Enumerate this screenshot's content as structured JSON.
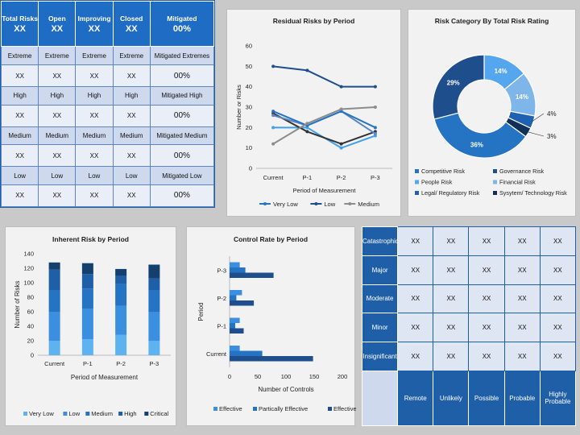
{
  "kpi": {
    "headers": [
      {
        "label": "Total Risks",
        "value": "XX"
      },
      {
        "label": "Open",
        "value": "XX"
      },
      {
        "label": "Improving",
        "value": "XX"
      },
      {
        "label": "Closed",
        "value": "XX"
      },
      {
        "label": "Mitigated",
        "value": "00%"
      }
    ],
    "rows": [
      {
        "level": [
          "Extreme",
          "Extreme",
          "Extreme",
          "Extreme",
          "Mitigated Extremes"
        ],
        "values": [
          "XX",
          "XX",
          "XX",
          "XX",
          "00%"
        ]
      },
      {
        "level": [
          "High",
          "High",
          "High",
          "High",
          "Mitigated High"
        ],
        "values": [
          "XX",
          "XX",
          "XX",
          "XX",
          "00%"
        ]
      },
      {
        "level": [
          "Medium",
          "Medium",
          "Medium",
          "Medium",
          "Mitigated Medium"
        ],
        "values": [
          "XX",
          "XX",
          "XX",
          "XX",
          "00%"
        ]
      },
      {
        "level": [
          "Low",
          "Low",
          "Low",
          "Low",
          "Mitigated Low"
        ],
        "values": [
          "XX",
          "XX",
          "XX",
          "XX",
          "00%"
        ]
      }
    ]
  },
  "matrix": {
    "rows": [
      "Catastrophic",
      "Major",
      "Moderate",
      "Minor",
      "Insignificant"
    ],
    "cols": [
      "Remote",
      "Unlikely",
      "Possible",
      "Probable",
      "Highly Probable"
    ],
    "cell": "XX"
  },
  "colors": {
    "dark": "#1f4e8c",
    "mid": "#2574c4",
    "light": "#54a6ee",
    "pale": "#9fcbf2",
    "navy": "#10305a",
    "gray": "#8c8c8c"
  },
  "chart_data": [
    {
      "type": "line",
      "title": "Residual Risks by Period",
      "xlabel": "Period of Measurement",
      "ylabel": "Number or Risks",
      "categories": [
        "Current",
        "P-1",
        "P-2",
        "P-3"
      ],
      "ylim": [
        0,
        60
      ],
      "yticks": [
        0,
        10,
        20,
        30,
        40,
        50,
        60
      ],
      "legend": "bottom",
      "series": [
        {
          "name": "Very Low",
          "values": [
            28,
            21,
            28,
            20
          ],
          "color": "#2574c4"
        },
        {
          "name": "Low",
          "values": [
            50,
            48,
            40,
            40
          ],
          "color": "#1f4e8c"
        },
        {
          "name": "Medium",
          "values": [
            12,
            22,
            29,
            30
          ],
          "color": "#8c8c8c"
        }
      ],
      "extra_series": [
        {
          "values": [
            20,
            20,
            10,
            16
          ],
          "color": "#3fa0ea"
        },
        {
          "values": [
            27,
            18,
            12,
            18
          ],
          "color": "#333333"
        },
        {
          "values": [
            26,
            21,
            28,
            17
          ],
          "color": "#5b84c4"
        }
      ]
    },
    {
      "type": "pie",
      "title": "Risk Category By Total Risk Rating",
      "legend": "bottom",
      "slices": [
        {
          "name": "Competitive Risk",
          "value": 36,
          "label": "36%",
          "color": "#2574c4"
        },
        {
          "name": "Governance Risk",
          "value": 29,
          "label": "29%",
          "color": "#1f4e8c"
        },
        {
          "name": "People Risk",
          "value": 14,
          "label": "14%",
          "color": "#54a6ee"
        },
        {
          "name": "Financial Risk",
          "value": 14,
          "label": "14%",
          "color": "#7fb6ea"
        },
        {
          "name": "Legal/ Regulatory Risk",
          "value": 4,
          "label": "4%",
          "color": "#1d61b0"
        },
        {
          "name": "Sysytem/ Technology Risk",
          "value": 3,
          "label": "3%",
          "color": "#10305a"
        }
      ],
      "order": [
        2,
        3,
        4,
        5,
        0,
        1
      ]
    },
    {
      "type": "bar",
      "title": "Inherent Risk by Period",
      "xlabel": "Period of Measurement",
      "ylabel": "Number of Risks",
      "categories": [
        "Current",
        "P-1",
        "P-2",
        "P-3"
      ],
      "ylim": [
        0,
        140
      ],
      "yticks": [
        0,
        20,
        40,
        60,
        80,
        100,
        120,
        140
      ],
      "stacked": true,
      "legend": "bottom",
      "series": [
        {
          "name": "Very Low",
          "values": [
            20,
            22,
            28,
            20
          ],
          "color": "#5fb2f0"
        },
        {
          "name": "Low",
          "values": [
            40,
            42,
            40,
            40
          ],
          "color": "#3a8fe0"
        },
        {
          "name": "Medium",
          "values": [
            30,
            28,
            30,
            30
          ],
          "color": "#2574c4"
        },
        {
          "name": "High",
          "values": [
            28,
            20,
            12,
            16
          ],
          "color": "#1f5fa8"
        },
        {
          "name": "Critical",
          "values": [
            10,
            15,
            9,
            19
          ],
          "color": "#14406f"
        }
      ]
    },
    {
      "type": "bar",
      "orientation": "horizontal",
      "title": "Control Rate by Period",
      "xlabel": "Number  of Controls",
      "ylabel": "Period",
      "categories": [
        "Current",
        "P-1",
        "P-2",
        "P-3"
      ],
      "xlim": [
        0,
        200
      ],
      "xticks": [
        0,
        50,
        100,
        150,
        200
      ],
      "legend": "bottom",
      "series": [
        {
          "name": "Effective",
          "values": [
            18,
            18,
            22,
            18
          ],
          "color": "#3a8fe0"
        },
        {
          "name": "Partically Effective",
          "values": [
            58,
            10,
            12,
            28
          ],
          "color": "#2574c4"
        },
        {
          "name": "Effective",
          "values": [
            148,
            25,
            43,
            78
          ],
          "color": "#1f4e8c"
        }
      ]
    }
  ]
}
